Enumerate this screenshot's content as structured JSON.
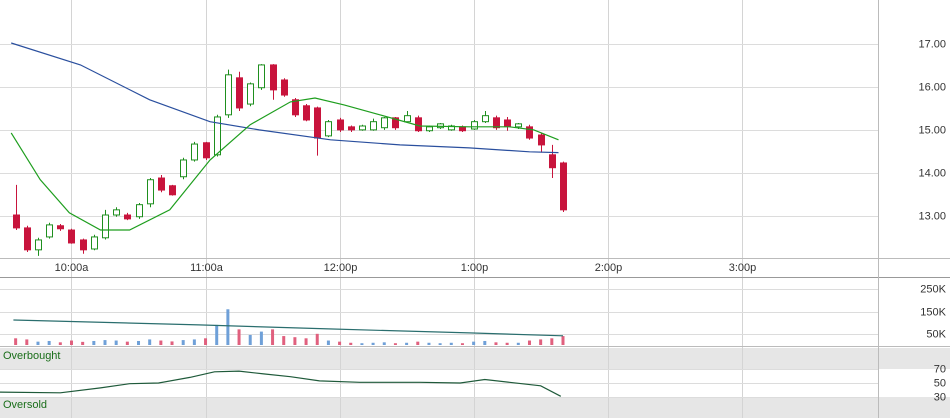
{
  "chart_data": [
    {
      "type": "candlestick",
      "x": [
        575,
        580,
        585,
        590,
        595,
        600,
        605,
        610,
        615,
        620,
        625,
        630,
        635,
        640,
        645,
        650,
        655,
        660,
        665,
        670,
        675,
        680,
        685,
        690,
        695,
        700,
        705,
        710,
        715,
        720,
        725,
        730,
        735,
        740,
        745,
        750,
        755,
        760,
        765,
        770,
        775,
        780,
        785,
        790,
        795,
        800,
        805,
        810,
        815,
        820
      ],
      "open": [
        13.02,
        12.72,
        12.21,
        12.51,
        12.77,
        12.67,
        12.44,
        12.23,
        12.49,
        13.02,
        13.02,
        12.98,
        13.28,
        13.88,
        13.7,
        13.91,
        14.3,
        14.7,
        14.42,
        15.35,
        16.21,
        15.6,
        15.98,
        16.51,
        16.16,
        15.7,
        15.56,
        15.51,
        14.86,
        15.23,
        15.07,
        15.0,
        15.0,
        15.05,
        15.28,
        15.19,
        15.28,
        14.98,
        15.05,
        15.0,
        15.07,
        15.02,
        15.19,
        15.28,
        15.23,
        15.07,
        15.07,
        14.88,
        14.42,
        14.23
      ],
      "high": [
        13.72,
        12.77,
        12.49,
        12.84,
        12.81,
        12.7,
        12.47,
        12.56,
        13.14,
        13.2,
        13.07,
        13.3,
        13.88,
        13.95,
        13.72,
        14.35,
        14.72,
        14.72,
        15.35,
        16.4,
        16.35,
        16.1,
        16.53,
        16.53,
        16.2,
        15.74,
        15.6,
        15.54,
        15.23,
        15.28,
        15.1,
        15.12,
        15.26,
        15.3,
        15.3,
        15.44,
        15.33,
        15.1,
        15.16,
        15.12,
        15.1,
        15.23,
        15.44,
        15.33,
        15.3,
        15.16,
        15.12,
        14.93,
        14.65,
        14.26
      ],
      "low": [
        12.67,
        12.16,
        12.07,
        12.47,
        12.65,
        12.35,
        12.12,
        12.2,
        12.45,
        12.98,
        12.9,
        12.93,
        13.2,
        13.55,
        13.47,
        13.85,
        14.26,
        14.3,
        14.38,
        15.28,
        15.44,
        15.55,
        15.93,
        15.7,
        15.77,
        15.3,
        15.2,
        14.4,
        14.83,
        14.95,
        14.95,
        14.98,
        14.98,
        15.0,
        15.0,
        15.16,
        14.95,
        14.95,
        15.02,
        14.98,
        14.95,
        15.0,
        15.16,
        15.0,
        14.98,
        15.02,
        14.77,
        14.47,
        13.88,
        13.09
      ],
      "close": [
        12.72,
        12.21,
        12.44,
        12.79,
        12.7,
        12.37,
        12.21,
        12.51,
        13.02,
        13.14,
        12.93,
        13.26,
        13.84,
        13.6,
        13.49,
        14.3,
        14.67,
        14.35,
        15.3,
        16.28,
        15.51,
        16.07,
        16.51,
        15.93,
        15.81,
        15.35,
        15.23,
        14.81,
        15.19,
        15.0,
        15.0,
        15.09,
        15.19,
        15.28,
        15.05,
        15.33,
        14.98,
        15.07,
        15.14,
        15.09,
        14.98,
        15.19,
        15.33,
        15.05,
        15.09,
        15.14,
        14.81,
        14.65,
        14.12,
        13.14
      ],
      "up_color": "#1e8f1e",
      "down_color": "#c8143c",
      "series": [
        {
          "color": "#2a4f9e",
          "x": [
            573,
            604,
            635,
            662,
            684,
            716,
            747,
            778,
            805,
            818
          ],
          "values": [
            17.02,
            16.51,
            15.7,
            15.19,
            15.0,
            14.77,
            14.65,
            14.58,
            14.49,
            14.47
          ]
        },
        {
          "color": "#1e9e1e",
          "x": [
            573,
            586,
            599,
            613,
            626,
            644,
            662,
            680,
            698,
            709,
            722,
            738,
            756,
            778,
            796,
            807,
            818
          ],
          "values": [
            14.93,
            13.84,
            13.07,
            12.67,
            12.67,
            13.14,
            14.3,
            15.12,
            15.65,
            15.74,
            15.58,
            15.35,
            15.09,
            15.07,
            15.07,
            15.0,
            14.77
          ]
        }
      ],
      "xlim": [
        568,
        961
      ],
      "xticks": [
        {
          "value": 600,
          "label": "10:00a"
        },
        {
          "value": 660,
          "label": "11:00a"
        },
        {
          "value": 720,
          "label": "12:00p"
        },
        {
          "value": 780,
          "label": "1:00p"
        },
        {
          "value": 840,
          "label": "2:00p"
        },
        {
          "value": 900,
          "label": "3:00p"
        }
      ],
      "ylim": [
        12.02,
        18.02
      ],
      "yticks": [
        {
          "value": 13,
          "label": "13.00"
        },
        {
          "value": 14,
          "label": "14.00"
        },
        {
          "value": 15,
          "label": "15.00"
        },
        {
          "value": 16,
          "label": "16.00"
        },
        {
          "value": 17,
          "label": "17.00"
        }
      ],
      "grid": true
    },
    {
      "type": "bar",
      "values": [
        30000,
        25000,
        15000,
        18000,
        12000,
        20000,
        14000,
        18000,
        22000,
        20000,
        15000,
        18000,
        25000,
        20000,
        16000,
        22000,
        25000,
        30000,
        90000,
        160000,
        70000,
        45000,
        60000,
        70000,
        40000,
        35000,
        30000,
        50000,
        20000,
        15000,
        10000,
        8000,
        10000,
        12000,
        8000,
        10000,
        15000,
        10000,
        8000,
        10000,
        8000,
        15000,
        18000,
        12000,
        10000,
        10000,
        20000,
        25000,
        30000,
        40000
      ],
      "up_color": "#6fa0d8",
      "down_color": "#e0607e",
      "series": [
        {
          "color": "#2a6e6e",
          "x": [
            574,
            657,
            715,
            778,
            820
          ],
          "values": [
            112000,
            90000,
            72000,
            54000,
            41000
          ]
        }
      ],
      "ylim": [
        0,
        300000
      ],
      "yticks": [
        {
          "value": 50000,
          "label": "50K"
        },
        {
          "value": 150000,
          "label": "150K"
        },
        {
          "value": 250000,
          "label": "250K"
        }
      ],
      "grid": true
    },
    {
      "type": "line",
      "series": [
        {
          "color": "#1f5a3a",
          "x": [
            568,
            595,
            613,
            626,
            639,
            653,
            664,
            675,
            686,
            698,
            711,
            729,
            756,
            774,
            785,
            796,
            810,
            819
          ],
          "values": [
            37,
            36,
            43,
            49,
            50,
            58,
            66,
            67,
            63,
            59,
            53,
            51,
            51,
            50,
            55,
            51,
            46,
            31
          ]
        }
      ],
      "bands": [
        {
          "label": "Overbought",
          "from": 70,
          "to": 100
        },
        {
          "label": "Oversold",
          "from": 0,
          "to": 30
        }
      ],
      "band_color": "#e6e6e6",
      "band_text_color": "#1a6e1a",
      "ylim": [
        0,
        100
      ],
      "yticks": [
        30,
        50,
        70
      ],
      "grid": true
    }
  ]
}
